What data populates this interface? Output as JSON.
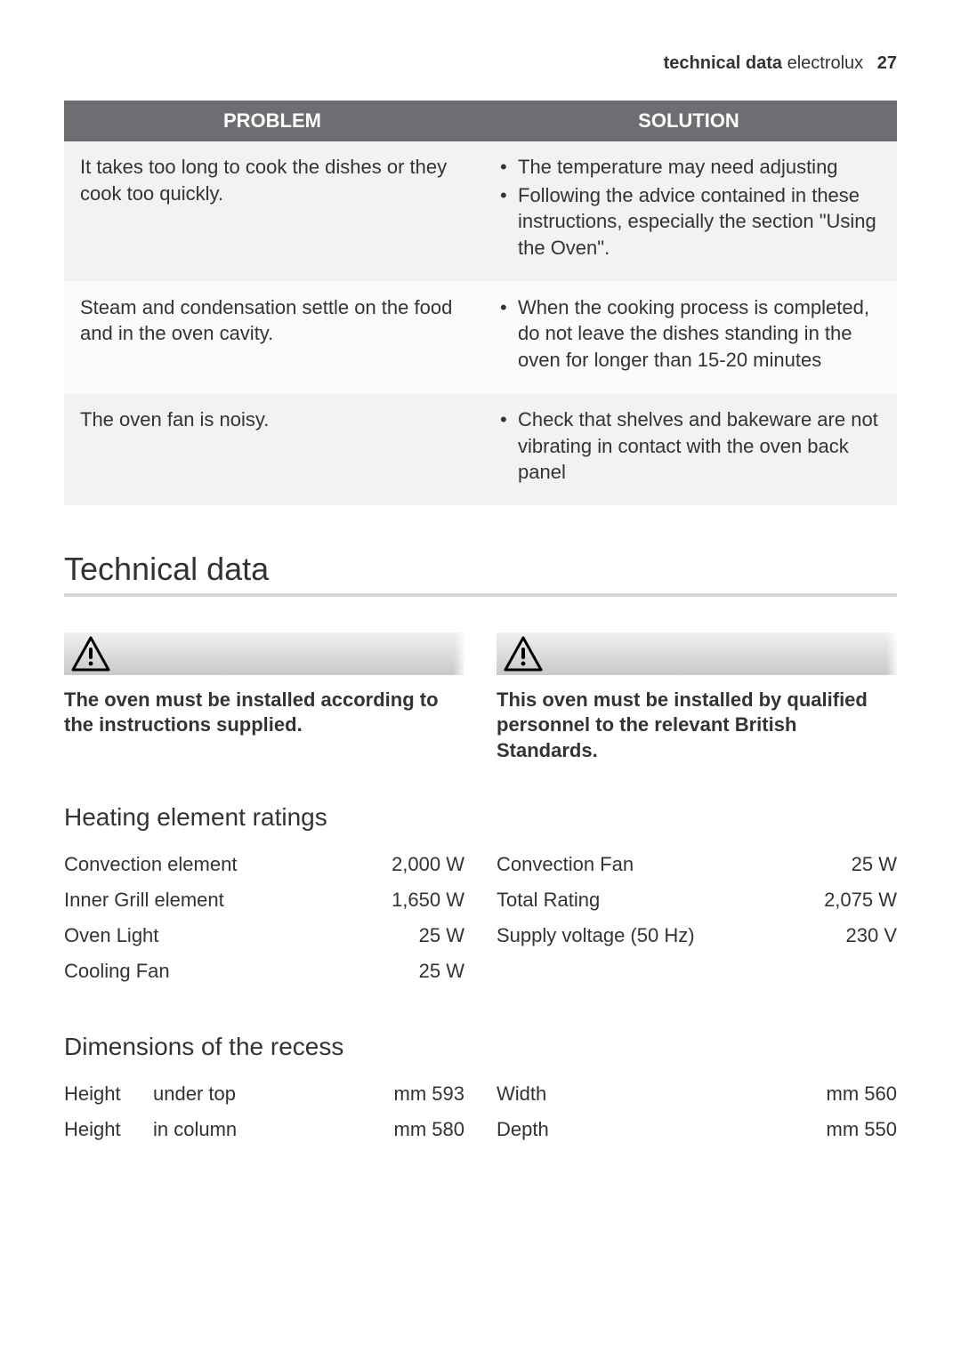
{
  "header": {
    "section_bold": "technical data",
    "brand": "electrolux",
    "page": "27"
  },
  "problems_table": {
    "headers": [
      "PROBLEM",
      "SOLUTION"
    ],
    "rows": [
      {
        "problem": "It takes too long to cook the dishes or they cook too quickly.",
        "solutions": [
          "The temperature may need adjusting",
          "Following the advice contained in these instructions, especially the section \"Using the Oven\"."
        ]
      },
      {
        "problem": "Steam and condensation settle on the food and in the oven cavity.",
        "solutions": [
          "When the cooking process is completed, do not leave the dishes standing in the oven for longer than 15-20 minutes"
        ]
      },
      {
        "problem": "The oven fan is noisy.",
        "solutions": [
          "Check that shelves and bakeware are not vibrating in contact with the oven back panel"
        ]
      }
    ]
  },
  "section_title": "Technical data",
  "warnings": {
    "left": "The oven must be installed according to the instructions supplied.",
    "right": "This oven must be installed by qualified personnel to the relevant British Standards."
  },
  "heating": {
    "title": "Heating element ratings",
    "left": [
      {
        "label": "Convection element",
        "value": "2,000 W"
      },
      {
        "label": "Inner Grill element",
        "value": "1,650 W"
      },
      {
        "label": "Oven Light",
        "value": "25 W"
      },
      {
        "label": "Cooling Fan",
        "value": "25 W"
      }
    ],
    "right": [
      {
        "label": "Convection Fan",
        "value": "25 W"
      },
      {
        "label": "Total Rating",
        "value": "2,075 W"
      },
      {
        "label": "Supply voltage (50 Hz)",
        "value": "230 V"
      }
    ]
  },
  "dimensions": {
    "title": "Dimensions of the recess",
    "left": [
      {
        "a": "Height",
        "b": "under top",
        "c": "mm 593"
      },
      {
        "a": "Height",
        "b": "in column",
        "c": "mm 580"
      }
    ],
    "right": [
      {
        "a": "Width",
        "b": "",
        "c": "mm 560"
      },
      {
        "a": "Depth",
        "b": "",
        "c": "mm 550"
      }
    ]
  },
  "colors": {
    "th_bg": "#6d6e71",
    "underline": "#d9d9d9"
  }
}
